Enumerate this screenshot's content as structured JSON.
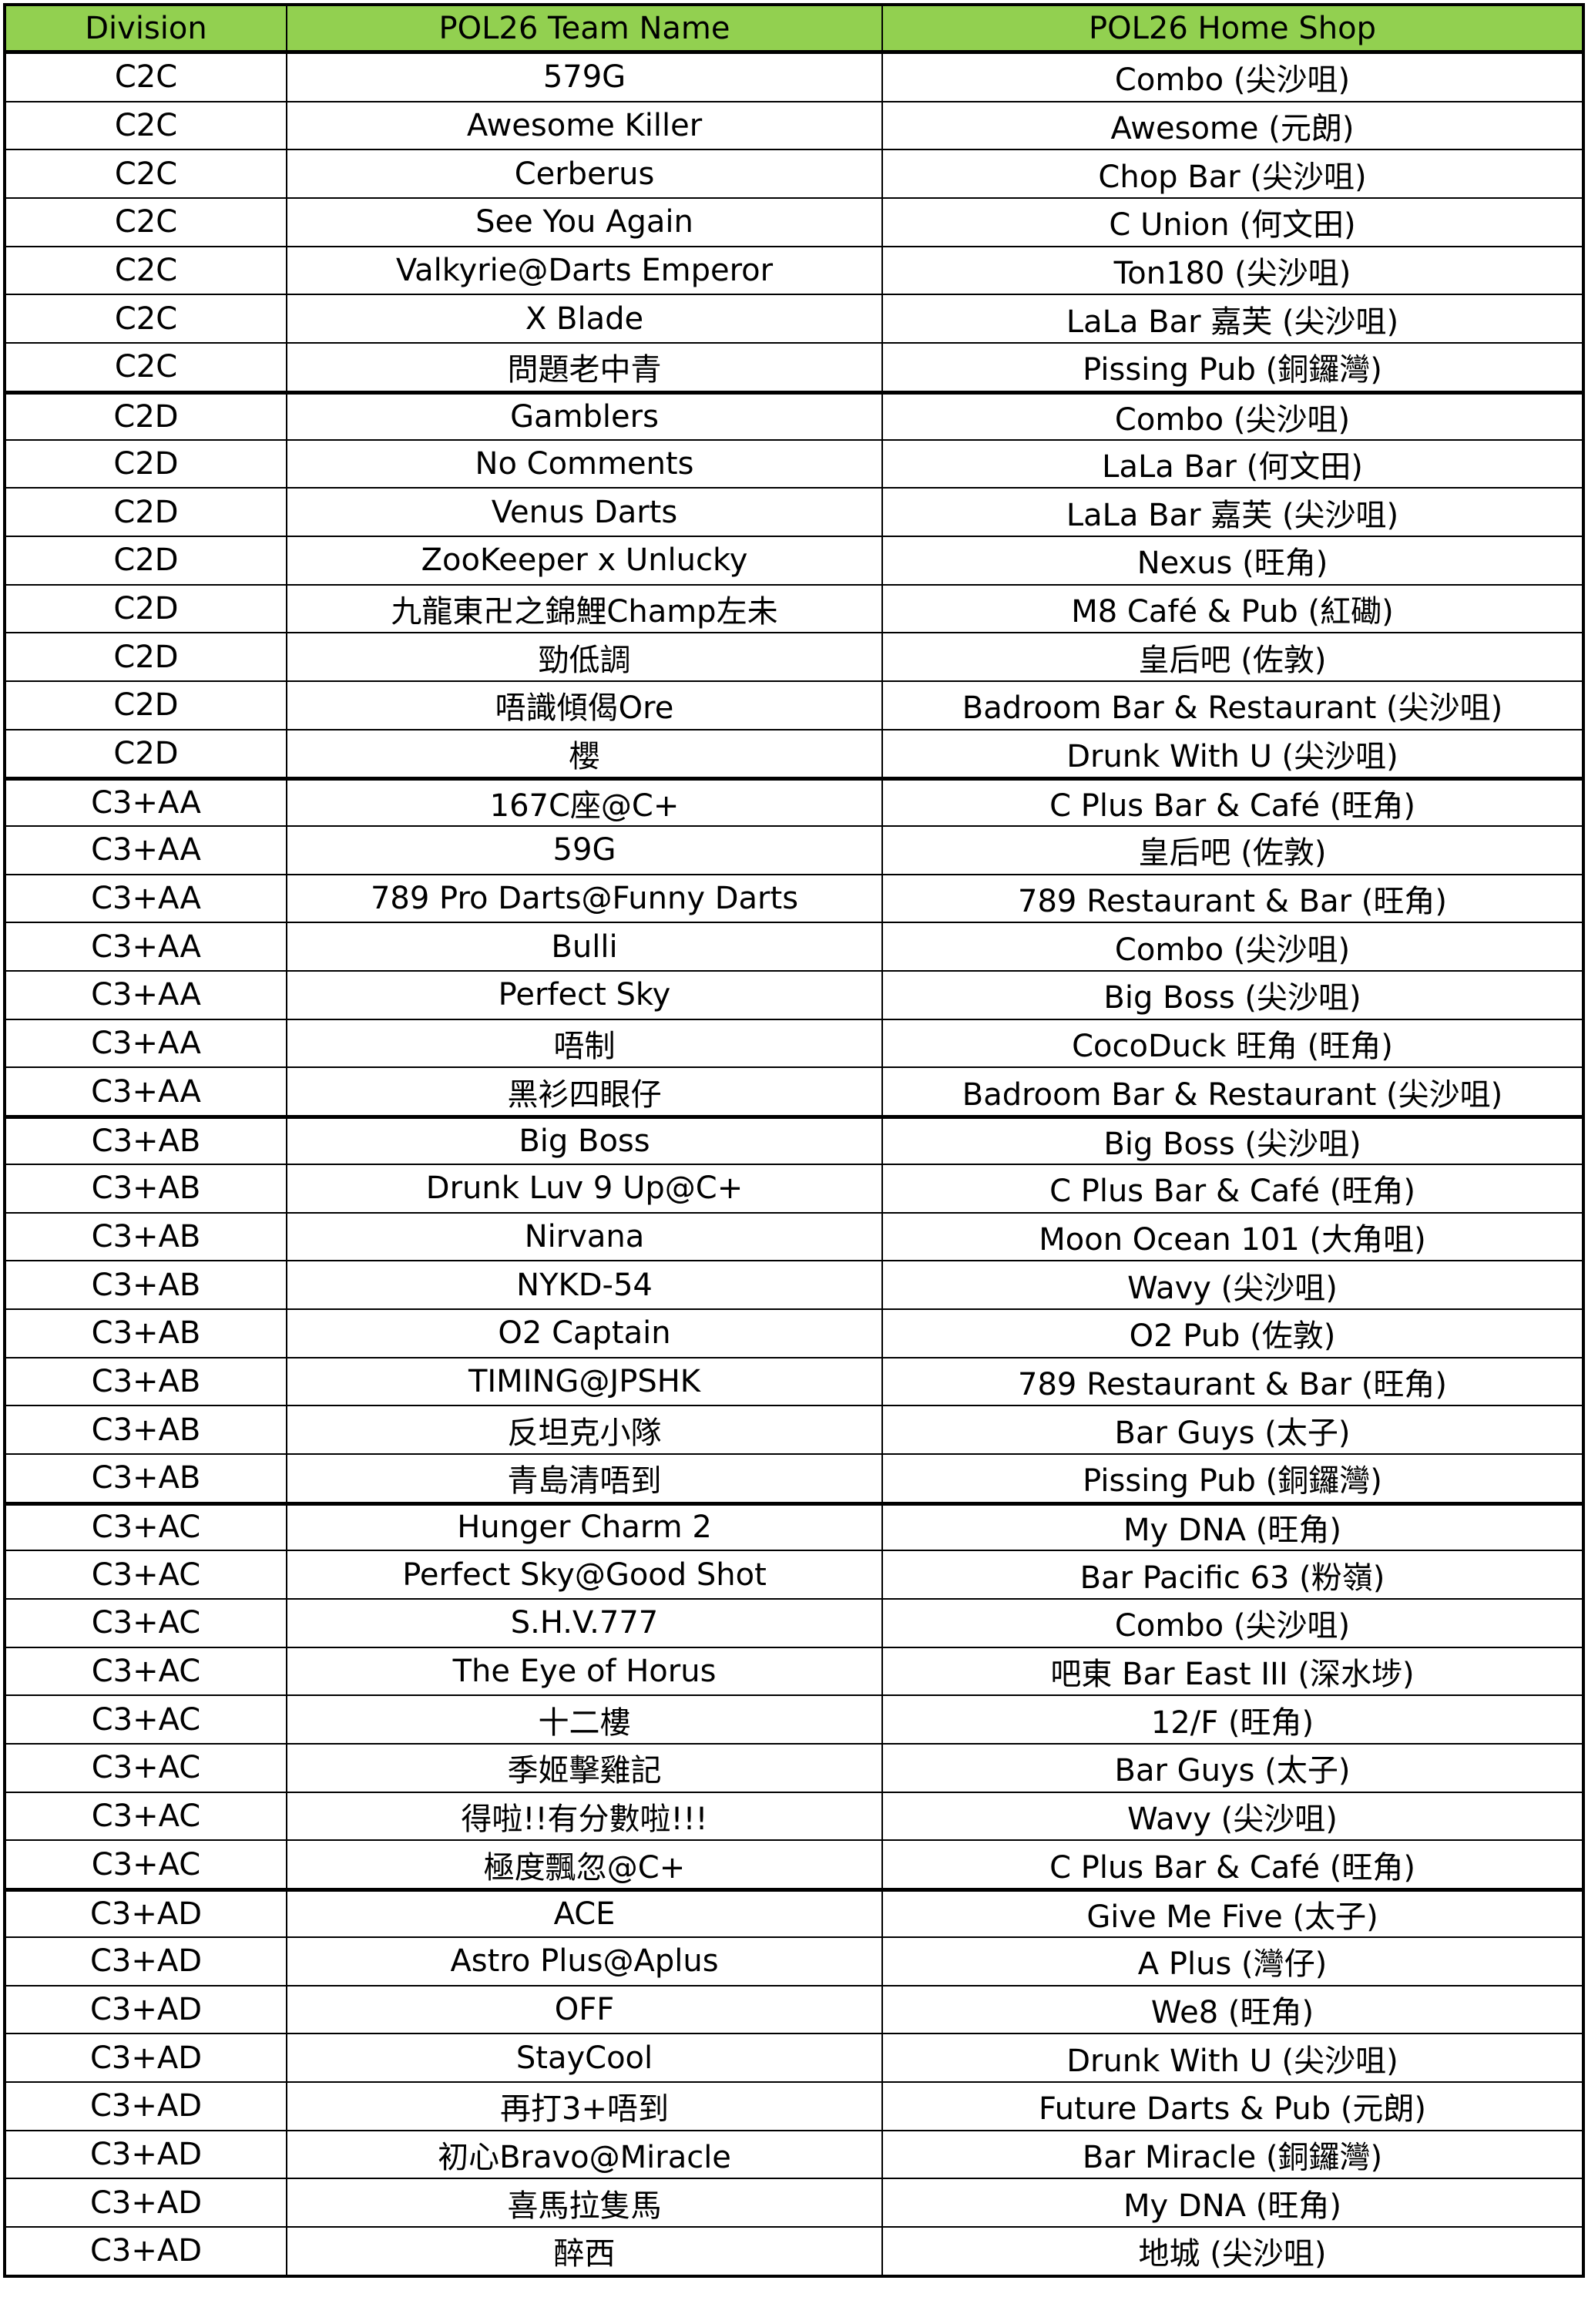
{
  "header": {
    "division": "Division",
    "team": "POL26 Team Name",
    "shop": "POL26 Home Shop",
    "color": "#92d050"
  },
  "rows": [
    {
      "division": "C2C",
      "team": "579G",
      "shop": "Combo (尖沙咀)"
    },
    {
      "division": "C2C",
      "team": "Awesome Killer",
      "shop": "Awesome (元朗)"
    },
    {
      "division": "C2C",
      "team": "Cerberus",
      "shop": "Chop Bar (尖沙咀)"
    },
    {
      "division": "C2C",
      "team": "See You Again",
      "shop": "C Union (何文田)"
    },
    {
      "division": "C2C",
      "team": "Valkyrie@Darts Emperor",
      "shop": "Ton180 (尖沙咀)"
    },
    {
      "division": "C2C",
      "team": "X Blade",
      "shop": "LaLa Bar 嘉芙 (尖沙咀)"
    },
    {
      "division": "C2C",
      "team": "問題老中青",
      "shop": "Pissing Pub (銅鑼灣)"
    },
    {
      "division": "C2D",
      "team": "Gamblers",
      "shop": "Combo (尖沙咀)"
    },
    {
      "division": "C2D",
      "team": "No Comments",
      "shop": "LaLa Bar (何文田)"
    },
    {
      "division": "C2D",
      "team": "Venus Darts",
      "shop": "LaLa Bar 嘉芙 (尖沙咀)"
    },
    {
      "division": "C2D",
      "team": "ZooKeeper x Unlucky",
      "shop": "Nexus (旺角)"
    },
    {
      "division": "C2D",
      "team": "九龍東卍之錦鯉Champ左未",
      "shop": "M8 Café & Pub (紅磡)"
    },
    {
      "division": "C2D",
      "team": "勁低調",
      "shop": "皇后吧 (佐敦)"
    },
    {
      "division": "C2D",
      "team": "唔識傾偈Ore",
      "shop": "Badroom Bar & Restaurant (尖沙咀)"
    },
    {
      "division": "C2D",
      "team": "櫻",
      "shop": "Drunk With U (尖沙咀)"
    },
    {
      "division": "C3+AA",
      "team": "167C座@C+",
      "shop": "C Plus Bar & Café (旺角)"
    },
    {
      "division": "C3+AA",
      "team": "59G",
      "shop": "皇后吧 (佐敦)"
    },
    {
      "division": "C3+AA",
      "team": "789 Pro Darts@Funny Darts",
      "shop": "789 Restaurant & Bar (旺角)"
    },
    {
      "division": "C3+AA",
      "team": "Bulli",
      "shop": "Combo (尖沙咀)"
    },
    {
      "division": "C3+AA",
      "team": "Perfect Sky",
      "shop": "Big Boss (尖沙咀)"
    },
    {
      "division": "C3+AA",
      "team": "唔制",
      "shop": "CocoDuck 旺角 (旺角)"
    },
    {
      "division": "C3+AA",
      "team": "黑衫四眼仔",
      "shop": "Badroom Bar & Restaurant (尖沙咀)"
    },
    {
      "division": "C3+AB",
      "team": "Big Boss",
      "shop": "Big Boss (尖沙咀)"
    },
    {
      "division": "C3+AB",
      "team": "Drunk Luv 9 Up@C+",
      "shop": "C Plus Bar & Café (旺角)"
    },
    {
      "division": "C3+AB",
      "team": "Nirvana",
      "shop": "Moon Ocean 101 (大角咀)"
    },
    {
      "division": "C3+AB",
      "team": "NYKD-54",
      "shop": "Wavy (尖沙咀)"
    },
    {
      "division": "C3+AB",
      "team": "O2 Captain",
      "shop": "O2 Pub (佐敦)"
    },
    {
      "division": "C3+AB",
      "team": "TIMING@JPSHK",
      "shop": "789 Restaurant & Bar (旺角)"
    },
    {
      "division": "C3+AB",
      "team": "反坦克小隊",
      "shop": "Bar Guys (太子)"
    },
    {
      "division": "C3+AB",
      "team": "青島清唔到",
      "shop": "Pissing Pub (銅鑼灣)"
    },
    {
      "division": "C3+AC",
      "team": "Hunger Charm 2",
      "shop": "My DNA (旺角)"
    },
    {
      "division": "C3+AC",
      "team": "Perfect Sky@Good Shot",
      "shop": "Bar Pacific 63 (粉嶺)"
    },
    {
      "division": "C3+AC",
      "team": "S.H.V.777",
      "shop": "Combo (尖沙咀)"
    },
    {
      "division": "C3+AC",
      "team": "The Eye of Horus",
      "shop": "吧東 Bar East III (深水埗)"
    },
    {
      "division": "C3+AC",
      "team": "十二樓",
      "shop": "12/F (旺角)"
    },
    {
      "division": "C3+AC",
      "team": "季姬擊雞記",
      "shop": "Bar Guys (太子)"
    },
    {
      "division": "C3+AC",
      "team": "得啦!!有分數啦!!!",
      "shop": "Wavy (尖沙咀)"
    },
    {
      "division": "C3+AC",
      "team": "極度飄忽@C+",
      "shop": "C Plus Bar & Café (旺角)"
    },
    {
      "division": "C3+AD",
      "team": "ACE",
      "shop": "Give Me Five (太子)"
    },
    {
      "division": "C3+AD",
      "team": "Astro Plus@Aplus",
      "shop": "A Plus (灣仔)"
    },
    {
      "division": "C3+AD",
      "team": "OFF",
      "shop": "We8 (旺角)"
    },
    {
      "division": "C3+AD",
      "team": "StayCool",
      "shop": "Drunk With U (尖沙咀)"
    },
    {
      "division": "C3+AD",
      "team": "再打3+唔到",
      "shop": "Future Darts & Pub (元朗)"
    },
    {
      "division": "C3+AD",
      "team": "初心Bravo@Miracle",
      "shop": "Bar Miracle (銅鑼灣)"
    },
    {
      "division": "C3+AD",
      "team": "喜馬拉隻馬",
      "shop": "My DNA (旺角)"
    },
    {
      "division": "C3+AD",
      "team": "醉西",
      "shop": "地城 (尖沙咀)"
    }
  ]
}
